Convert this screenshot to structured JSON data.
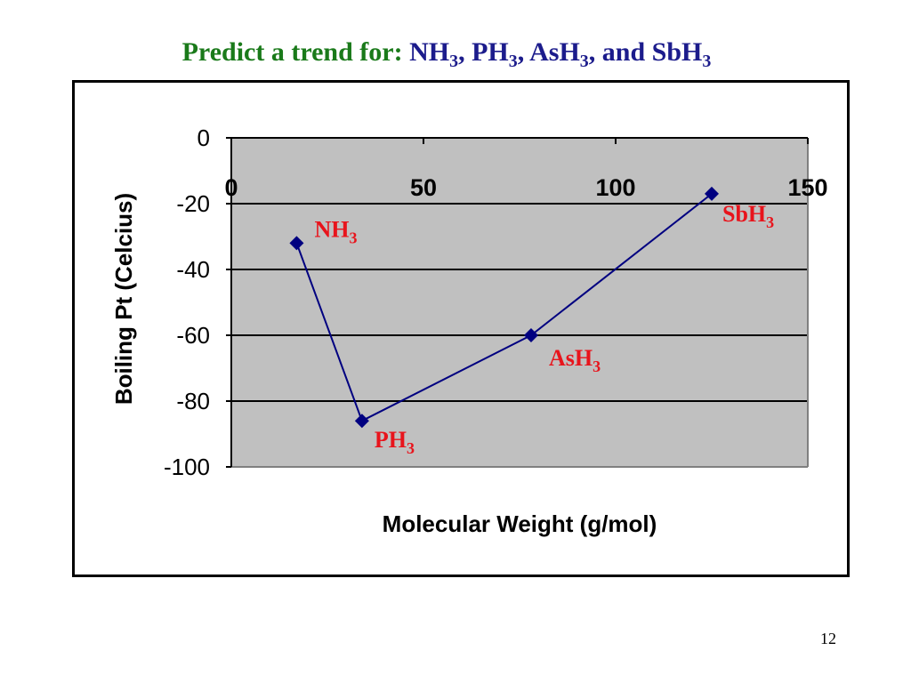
{
  "slide": {
    "title_prefix": "Predict a trend for: ",
    "title_items": [
      {
        "base": "NH",
        "sub": "3",
        "sep": ", "
      },
      {
        "base": "PH",
        "sub": "3",
        "sep": ", "
      },
      {
        "base": "AsH",
        "sub": "3",
        "sep": ", and "
      },
      {
        "base": "SbH",
        "sub": "3",
        "sep": ""
      }
    ],
    "page_number": "12"
  },
  "colors": {
    "title_prefix": "#1a7a1a",
    "title_formulas": "#1c1c8c",
    "plot_background": "#c0c0c0",
    "series": "#000080",
    "point_labels": "#e8141c"
  },
  "chart_data": {
    "type": "scatter",
    "xlabel": "Molecular Weight (g/mol)",
    "ylabel": "Boiling Pt (Celcius)",
    "xlim": [
      0,
      150
    ],
    "ylim": [
      -100,
      0
    ],
    "x_ticks": [
      "0",
      "50",
      "100",
      "150"
    ],
    "y_ticks": [
      "0",
      "-20",
      "-40",
      "-60",
      "-80",
      "-100"
    ],
    "x_axis_position": "top",
    "grid": "horizontal",
    "legend": "none",
    "series": [
      {
        "marker": "diamond",
        "line": true,
        "points": [
          {
            "x": 17,
            "y": -32,
            "label": "NH",
            "label_sub": "3"
          },
          {
            "x": 34,
            "y": -86,
            "label": "PH",
            "label_sub": "3"
          },
          {
            "x": 78,
            "y": -60,
            "label": "AsH",
            "label_sub": "3"
          },
          {
            "x": 125,
            "y": -17,
            "label": "SbH",
            "label_sub": "3"
          }
        ]
      }
    ]
  }
}
